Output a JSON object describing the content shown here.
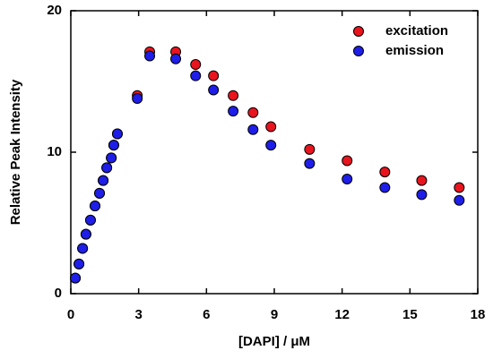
{
  "chart_data": {
    "type": "scatter",
    "xlabel": "[DAPI] / μM",
    "ylabel": "Relative Peak Intensity",
    "x": [
      0.2,
      0.36,
      0.52,
      0.67,
      0.87,
      1.07,
      1.27,
      1.43,
      1.59,
      1.79,
      1.9,
      2.06,
      2.94,
      3.49,
      4.64,
      5.52,
      6.31,
      7.18,
      8.06,
      8.85,
      10.56,
      12.22,
      13.89,
      15.52,
      17.18
    ],
    "series": [
      {
        "name": "excitation",
        "color": "#e8141e",
        "values": [
          1.1,
          2.1,
          3.2,
          4.2,
          5.2,
          6.2,
          7.1,
          8.0,
          8.9,
          9.6,
          10.5,
          11.3,
          14.0,
          17.1,
          17.1,
          16.2,
          15.4,
          14.0,
          12.8,
          11.8,
          10.2,
          9.4,
          8.6,
          8.0,
          7.5
        ]
      },
      {
        "name": "emission",
        "color": "#1e1ee8",
        "values": [
          1.1,
          2.1,
          3.2,
          4.2,
          5.2,
          6.2,
          7.1,
          8.0,
          8.9,
          9.6,
          10.5,
          11.3,
          13.8,
          16.8,
          16.6,
          15.4,
          14.4,
          12.9,
          11.6,
          10.5,
          9.2,
          8.1,
          7.5,
          7.0,
          6.6
        ]
      }
    ],
    "xlim": [
      0,
      18
    ],
    "xticks": [
      0,
      3,
      6,
      9,
      12,
      15,
      18
    ],
    "ylim": [
      0,
      20
    ],
    "yticks": [
      0,
      10,
      20
    ],
    "legend": "upper right"
  }
}
